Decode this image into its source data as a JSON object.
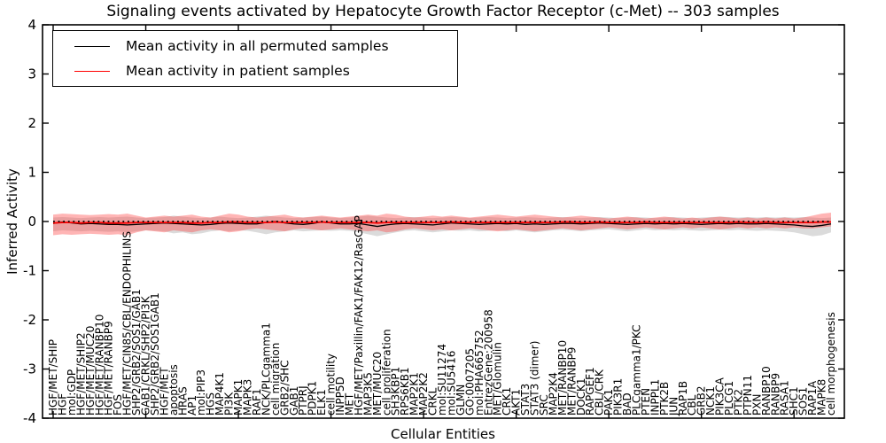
{
  "colors": {
    "permuted_line": "#000000",
    "patient_line": "#ff0000",
    "permuted_band": "rgba(0,0,0,0.14)",
    "patient_band": "rgba(255,60,60,0.38)",
    "axis": "#000000",
    "background": "#ffffff"
  },
  "chart_data": {
    "type": "line",
    "title": "Signaling events activated by Hepatocyte Growth Factor Receptor (c-Met) -- 303 samples",
    "xlabel": "Cellular Entities",
    "ylabel": "Inferred Activity",
    "ylim": [
      -4,
      4
    ],
    "yticks": [
      "4",
      "3",
      "2",
      "1",
      "0",
      "-1",
      "-2",
      "-3",
      "-4"
    ],
    "ytick_values": [
      4,
      3,
      2,
      1,
      0,
      -1,
      -2,
      -3,
      -4
    ],
    "x_major_tick_every": 10,
    "grid": false,
    "zero_line": {
      "y": 0,
      "style": "dotted",
      "color": "#000000"
    },
    "legend": {
      "position": "upper left",
      "items": [
        {
          "label": "Mean activity in all permuted samples",
          "color": "#000000"
        },
        {
          "label": "Mean activity in patient samples",
          "color": "#ff0000"
        }
      ]
    },
    "categories": [
      "HGF/MET/SHIP",
      "HGF",
      "mol:GDP",
      "HGF/MET/SHIP2",
      "HGF/MET/MUC20",
      "HGF/MET/RANBP10",
      "HGF/MET/RANBP9",
      "FOS",
      "HGF/MET/CIN85/CBL/ENDOPHILINS",
      "SHP2/GRB2/SOS1/GAB1",
      "GAB1/CRKL/SHP2/PI3K",
      "SHP2/GRB2/SOS1GAB1",
      "HGF/MET",
      "apoptosis",
      "HRAS",
      "AP1",
      "mol:PIP3",
      "HGS",
      "MAP4K1",
      "PI3K",
      "MAPK1",
      "MAPK3",
      "RAF1",
      "NCK/PLCgamma1",
      "cell migration",
      "GRB2/SHC",
      "GAB1",
      "PTPRJ",
      "PDPK1",
      "ELK1",
      "cell motility",
      "INPP5D",
      "MET",
      "HGF/MET/Paxillin/FAK1/FAK12/RasGAP",
      "MAP3K5",
      "MET/MUC20",
      "cell proliferation",
      "SH3KBP1",
      "RPS6KB1",
      "MAP2K1",
      "MAP2K2",
      "CRKL",
      "mol:SU11274",
      "mol:SU5416",
      "GLMN",
      "GO:0007205",
      "mol:PHA665752",
      "EntrezGene:200958",
      "MET/Glomulin",
      "CRK1",
      "AKT1",
      "STAT3",
      "STAT3 (dimer)",
      "SRC",
      "MAP2K4",
      "MET/RANBP10",
      "MET/RANBP9",
      "DOCK1",
      "RAPGEF1",
      "CBL/CRK",
      "PAK1",
      "PIK3R1",
      "BAD",
      "PLCgamma1/PKC",
      "PTEN",
      "INPPL1",
      "PTK2B",
      "JUN",
      "RAP1B",
      "CBL",
      "GRB2",
      "NCK1",
      "PIK3CA",
      "PLCG1",
      "PTK2",
      "PTPN11",
      "PXN",
      "RANBP10",
      "RANBP9",
      "RASA1",
      "SHC1",
      "SOS1",
      "RAP1A",
      "MAPK8",
      "cell morphogenesis"
    ],
    "series": [
      {
        "name": "Mean activity in all permuted samples",
        "color": "#000000",
        "style": "solid",
        "values": [
          -0.04,
          -0.01,
          -0.03,
          -0.05,
          -0.04,
          -0.05,
          -0.06,
          -0.06,
          -0.07,
          -0.06,
          -0.05,
          -0.04,
          -0.03,
          -0.04,
          -0.05,
          -0.06,
          -0.07,
          -0.06,
          -0.04,
          -0.03,
          -0.04,
          -0.05,
          -0.05,
          -0.02,
          0.0,
          -0.03,
          -0.05,
          -0.06,
          -0.04,
          -0.01,
          -0.03,
          -0.05,
          -0.05,
          -0.04,
          -0.07,
          -0.1,
          -0.07,
          -0.05,
          -0.04,
          -0.05,
          -0.06,
          -0.07,
          -0.05,
          -0.03,
          -0.04,
          -0.05,
          -0.06,
          -0.05,
          -0.04,
          -0.05,
          -0.04,
          -0.06,
          -0.05,
          -0.06,
          -0.05,
          -0.04,
          -0.04,
          -0.05,
          -0.04,
          -0.03,
          -0.04,
          -0.05,
          -0.06,
          -0.05,
          -0.04,
          -0.05,
          -0.04,
          -0.05,
          -0.04,
          -0.05,
          -0.06,
          -0.05,
          -0.04,
          -0.05,
          -0.04,
          -0.05,
          -0.05,
          -0.04,
          -0.05,
          -0.06,
          -0.07,
          -0.09,
          -0.1,
          -0.08,
          -0.05
        ]
      },
      {
        "name": "Mean activity in patient samples",
        "color": "#ff0000",
        "style": "solid",
        "values": [
          -0.03,
          -0.02,
          -0.02,
          -0.03,
          -0.02,
          -0.02,
          -0.03,
          -0.03,
          -0.03,
          -0.02,
          -0.02,
          -0.02,
          -0.02,
          -0.02,
          -0.02,
          -0.03,
          -0.03,
          -0.02,
          -0.02,
          -0.01,
          -0.01,
          -0.02,
          -0.02,
          -0.02,
          -0.01,
          -0.02,
          -0.02,
          -0.02,
          -0.02,
          -0.01,
          -0.02,
          -0.02,
          -0.02,
          -0.02,
          -0.02,
          -0.03,
          -0.02,
          -0.02,
          -0.02,
          -0.02,
          -0.02,
          -0.02,
          -0.02,
          -0.01,
          -0.02,
          -0.02,
          -0.02,
          -0.02,
          -0.02,
          -0.02,
          -0.02,
          -0.02,
          -0.02,
          -0.02,
          -0.02,
          -0.01,
          -0.01,
          -0.02,
          -0.02,
          -0.01,
          -0.02,
          -0.02,
          -0.02,
          -0.02,
          -0.01,
          -0.02,
          -0.02,
          -0.02,
          -0.02,
          -0.02,
          -0.02,
          -0.02,
          -0.02,
          -0.02,
          -0.01,
          -0.02,
          -0.02,
          -0.01,
          -0.02,
          -0.02,
          -0.02,
          -0.02,
          -0.02,
          -0.01,
          -0.01
        ]
      }
    ],
    "bands": [
      {
        "name": "permuted-samples-std-band",
        "color": "rgba(0,0,0,0.14)",
        "upper": [
          0.08,
          0.09,
          0.08,
          0.07,
          0.08,
          0.09,
          0.08,
          0.09,
          0.1,
          0.08,
          0.07,
          0.08,
          0.09,
          0.12,
          0.1,
          0.08,
          0.07,
          0.08,
          0.1,
          0.08,
          0.07,
          0.08,
          0.1,
          0.12,
          0.1,
          0.08,
          0.07,
          0.08,
          0.09,
          0.1,
          0.08,
          0.07,
          0.08,
          0.1,
          0.12,
          0.1,
          0.08,
          0.07,
          0.08,
          0.09,
          0.08,
          0.07,
          0.08,
          0.09,
          0.08,
          0.07,
          0.08,
          0.09,
          0.08,
          0.07,
          0.08,
          0.09,
          0.08,
          0.07,
          0.08,
          0.09,
          0.08,
          0.07,
          0.08,
          0.09,
          0.08,
          0.07,
          0.08,
          0.09,
          0.08,
          0.07,
          0.08,
          0.09,
          0.08,
          0.07,
          0.08,
          0.09,
          0.1,
          0.09,
          0.08,
          0.09,
          0.08,
          0.09,
          0.08,
          0.09,
          0.08,
          0.09,
          0.08,
          0.07,
          0.08
        ],
        "lower": [
          -0.2,
          -0.18,
          -0.19,
          -0.2,
          -0.19,
          -0.2,
          -0.21,
          -0.2,
          -0.22,
          -0.2,
          -0.18,
          -0.19,
          -0.2,
          -0.24,
          -0.22,
          -0.26,
          -0.24,
          -0.2,
          -0.18,
          -0.2,
          -0.18,
          -0.19,
          -0.22,
          -0.26,
          -0.22,
          -0.2,
          -0.18,
          -0.2,
          -0.19,
          -0.18,
          -0.19,
          -0.18,
          -0.19,
          -0.22,
          -0.26,
          -0.3,
          -0.26,
          -0.22,
          -0.19,
          -0.18,
          -0.2,
          -0.22,
          -0.2,
          -0.18,
          -0.19,
          -0.18,
          -0.2,
          -0.19,
          -0.18,
          -0.2,
          -0.18,
          -0.2,
          -0.22,
          -0.2,
          -0.18,
          -0.17,
          -0.18,
          -0.2,
          -0.18,
          -0.17,
          -0.16,
          -0.18,
          -0.2,
          -0.18,
          -0.16,
          -0.18,
          -0.17,
          -0.18,
          -0.17,
          -0.18,
          -0.19,
          -0.18,
          -0.17,
          -0.18,
          -0.17,
          -0.18,
          -0.19,
          -0.18,
          -0.19,
          -0.2,
          -0.22,
          -0.26,
          -0.3,
          -0.28,
          -0.22
        ]
      },
      {
        "name": "patient-samples-std-band",
        "color": "rgba(255,60,60,0.38)",
        "upper": [
          0.14,
          0.16,
          0.15,
          0.14,
          0.13,
          0.14,
          0.15,
          0.14,
          0.16,
          0.12,
          0.08,
          0.1,
          0.12,
          0.1,
          0.12,
          0.14,
          0.1,
          0.08,
          0.12,
          0.16,
          0.14,
          0.1,
          0.08,
          0.1,
          0.12,
          0.14,
          0.1,
          0.08,
          0.1,
          0.12,
          0.1,
          0.08,
          0.1,
          0.12,
          0.14,
          0.12,
          0.16,
          0.14,
          0.1,
          0.08,
          0.1,
          0.12,
          0.1,
          0.12,
          0.1,
          0.08,
          0.1,
          0.12,
          0.14,
          0.12,
          0.1,
          0.12,
          0.14,
          0.12,
          0.1,
          0.08,
          0.1,
          0.12,
          0.1,
          0.08,
          0.06,
          0.08,
          0.1,
          0.08,
          0.06,
          0.08,
          0.1,
          0.08,
          0.06,
          0.08,
          0.06,
          0.08,
          0.1,
          0.08,
          0.06,
          0.08,
          0.06,
          0.08,
          0.06,
          0.08,
          0.06,
          0.08,
          0.12,
          0.16,
          0.18
        ],
        "lower": [
          -0.28,
          -0.26,
          -0.27,
          -0.26,
          -0.25,
          -0.26,
          -0.27,
          -0.26,
          -0.28,
          -0.22,
          -0.18,
          -0.2,
          -0.22,
          -0.18,
          -0.2,
          -0.22,
          -0.18,
          -0.16,
          -0.18,
          -0.22,
          -0.2,
          -0.16,
          -0.14,
          -0.16,
          -0.18,
          -0.2,
          -0.16,
          -0.14,
          -0.16,
          -0.18,
          -0.16,
          -0.14,
          -0.16,
          -0.18,
          -0.2,
          -0.18,
          -0.22,
          -0.2,
          -0.16,
          -0.14,
          -0.16,
          -0.18,
          -0.16,
          -0.18,
          -0.16,
          -0.14,
          -0.16,
          -0.18,
          -0.2,
          -0.18,
          -0.16,
          -0.18,
          -0.2,
          -0.18,
          -0.16,
          -0.14,
          -0.16,
          -0.18,
          -0.16,
          -0.14,
          -0.12,
          -0.14,
          -0.16,
          -0.14,
          -0.12,
          -0.14,
          -0.16,
          -0.14,
          -0.12,
          -0.14,
          -0.12,
          -0.14,
          -0.16,
          -0.14,
          -0.12,
          -0.14,
          -0.12,
          -0.14,
          -0.12,
          -0.14,
          -0.12,
          -0.14,
          -0.14,
          -0.12,
          -0.1
        ]
      }
    ]
  }
}
